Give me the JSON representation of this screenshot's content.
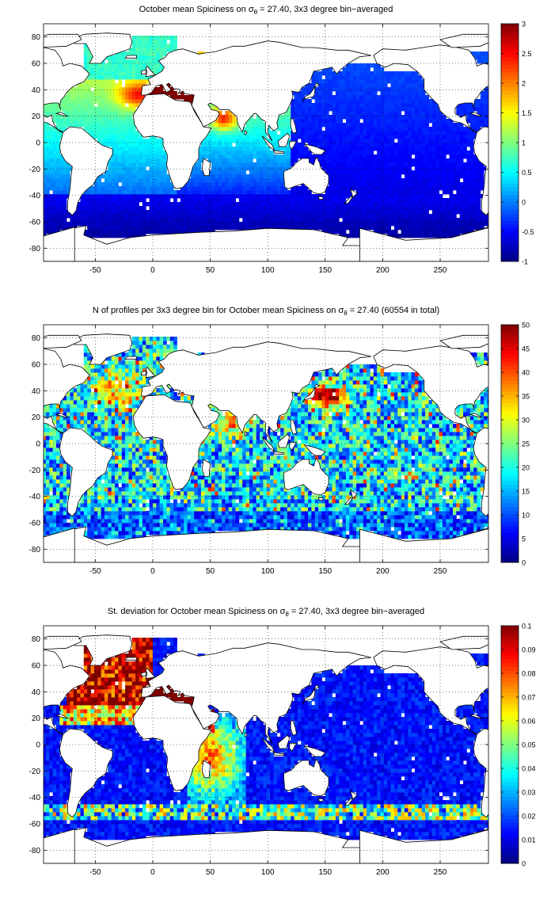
{
  "figure": {
    "panels": [
      {
        "id": "spiciness",
        "title_prefix": "October mean Spiciness on ",
        "title_sigma": "σ",
        "title_sub": "θ",
        "title_suffix": " = 27.40, 3x3 degree bin−averaged"
      },
      {
        "id": "nprofiles",
        "title_prefix": "N of profiles per 3x3 degree bin for October mean Spiciness on ",
        "title_sigma": "σ",
        "title_sub": "θ",
        "title_suffix": " = 27.40 (60554 in total)"
      },
      {
        "id": "stdev",
        "title_prefix": "St. deviation for October mean Spiciness on ",
        "title_sigma": "σ",
        "title_sub": "θ",
        "title_suffix": " = 27.40, 3x3 degree bin−averaged"
      }
    ]
  },
  "chart_data": [
    {
      "type": "heatmap",
      "title": "October mean Spiciness on σθ = 27.40, 3x3 degree bin−averaged",
      "colormap": "jet",
      "xlim": [
        -95,
        292
      ],
      "ylim": [
        -90,
        90
      ],
      "xticks": [
        "-50",
        "0",
        "50",
        "100",
        "150",
        "200",
        "250"
      ],
      "yticks": [
        "80",
        "60",
        "40",
        "20",
        "0",
        "-20",
        "-40",
        "-60",
        "-80"
      ],
      "grid": true,
      "colorbar": {
        "range": [
          -1,
          3
        ],
        "ticks": [
          "3",
          "2.5",
          "2",
          "1.5",
          "1",
          "0.5",
          "0",
          "-0.5",
          "-1"
        ]
      },
      "bin_size_deg": 3,
      "regions": [
        {
          "area": "Mediterranean Sea",
          "value": 3.0
        },
        {
          "area": "Red Sea / Gulf of Aden",
          "value": 3.0
        },
        {
          "area": "North Atlantic (near Gibraltar outflow)",
          "value": 1.8
        },
        {
          "area": "Arabian Sea",
          "value": 1.6
        },
        {
          "area": "North Atlantic subpolar",
          "value": 0.7
        },
        {
          "area": "Tropical Atlantic",
          "value": 0.2
        },
        {
          "area": "Indian Ocean",
          "value": 0.0
        },
        {
          "area": "Pacific Ocean",
          "value": -0.4
        },
        {
          "area": "Southern Ocean",
          "value": -0.8
        }
      ]
    },
    {
      "type": "heatmap",
      "title": "N of profiles per 3x3 degree bin for October mean Spiciness on σθ = 27.40 (60554 in total)",
      "colormap": "jet",
      "xlim": [
        -95,
        292
      ],
      "ylim": [
        -90,
        90
      ],
      "xticks": [
        "-50",
        "0",
        "50",
        "100",
        "150",
        "200",
        "250"
      ],
      "yticks": [
        "80",
        "60",
        "40",
        "20",
        "0",
        "-20",
        "-40",
        "-60",
        "-80"
      ],
      "grid": true,
      "colorbar": {
        "range": [
          0,
          50
        ],
        "ticks": [
          "50",
          "45",
          "40",
          "35",
          "30",
          "25",
          "20",
          "15",
          "10",
          "5",
          "0"
        ]
      },
      "total_profiles": 60554,
      "regions": [
        {
          "area": "Kuroshio extension (NW Pacific)",
          "value": 50
        },
        {
          "area": "North Atlantic",
          "value": 30
        },
        {
          "area": "Arabian Sea / Bay of Bengal",
          "value": 30
        },
        {
          "area": "Open Pacific",
          "value": 18
        },
        {
          "area": "Southern Ocean",
          "value": 12
        }
      ]
    },
    {
      "type": "heatmap",
      "title": "St. deviation for October mean Spiciness on σθ = 27.40, 3x3 degree bin−averaged",
      "colormap": "jet",
      "xlim": [
        -95,
        292
      ],
      "ylim": [
        -90,
        90
      ],
      "xticks": [
        "-50",
        "0",
        "50",
        "100",
        "150",
        "200",
        "250"
      ],
      "yticks": [
        "80",
        "60",
        "40",
        "20",
        "0",
        "-20",
        "-40",
        "-60",
        "-80"
      ],
      "grid": true,
      "colorbar": {
        "range": [
          0,
          0.1
        ],
        "ticks": [
          "0.1",
          "0.09",
          "0.08",
          "0.07",
          "0.06",
          "0.05",
          "0.04",
          "0.03",
          "0.02",
          "0.01",
          "0"
        ]
      },
      "regions": [
        {
          "area": "North Atlantic",
          "value": 0.1
        },
        {
          "area": "Mediterranean Sea",
          "value": 0.1
        },
        {
          "area": "Red Sea / Arabian Sea",
          "value": 0.08
        },
        {
          "area": "Agulhas / SW Indian Ocean",
          "value": 0.05
        },
        {
          "area": "Antarctic Circumpolar band",
          "value": 0.06
        },
        {
          "area": "Pacific Ocean",
          "value": 0.01
        }
      ]
    }
  ]
}
